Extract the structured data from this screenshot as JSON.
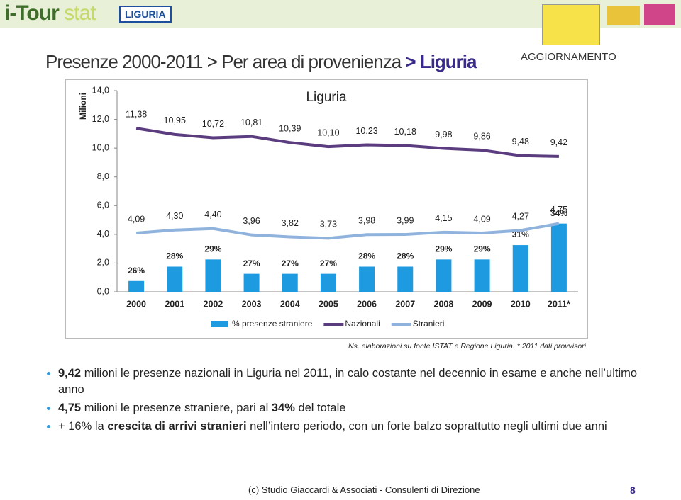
{
  "header": {
    "logo_main": "i-Tour",
    "logo_sub": "stat",
    "badge": "LIGURIA",
    "title": "Presenze 2000-2011 > Per area di provenienza",
    "title_highlight": "> Liguria",
    "tag": "AGGIORNAMENTO"
  },
  "chart_data": {
    "type": "combo",
    "title": "Liguria",
    "y_label": "Milioni",
    "categories": [
      "2000",
      "2001",
      "2002",
      "2003",
      "2004",
      "2005",
      "2006",
      "2007",
      "2008",
      "2009",
      "2010",
      "2011*"
    ],
    "ylim": [
      0,
      14
    ],
    "yticks": [
      {
        "value": 0,
        "label": "0,0"
      },
      {
        "value": 2,
        "label": "2,0"
      },
      {
        "value": 4,
        "label": "4,0"
      },
      {
        "value": 6,
        "label": "6,0"
      },
      {
        "value": 8,
        "label": "8,0"
      },
      {
        "value": 10,
        "label": "10,0"
      },
      {
        "value": 12,
        "label": "12,0"
      },
      {
        "value": 14,
        "label": "14,0"
      }
    ],
    "y2lim": [
      24.5,
      52.5
    ],
    "series": [
      {
        "name": "% presenze straniere",
        "type": "bar",
        "axis": "y2",
        "color": "#1e9be0",
        "values": [
          26,
          28,
          29,
          27,
          27,
          27,
          28,
          28,
          29,
          29,
          31,
          34
        ],
        "value_labels": [
          "26%",
          "28%",
          "29%",
          "27%",
          "27%",
          "27%",
          "28%",
          "28%",
          "29%",
          "29%",
          "31%",
          "34%"
        ]
      },
      {
        "name": "Nazionali",
        "type": "line",
        "color": "#5b3c7e",
        "values": [
          11.38,
          10.95,
          10.72,
          10.81,
          10.39,
          10.1,
          10.23,
          10.18,
          9.98,
          9.86,
          9.48,
          9.42
        ],
        "value_labels": [
          "11,38",
          "10,95",
          "10,72",
          "10,81",
          "10,39",
          "10,10",
          "10,23",
          "10,18",
          "9,98",
          "9,86",
          "9,48",
          "9,42"
        ]
      },
      {
        "name": "Stranieri",
        "type": "line",
        "color": "#8fb3dd",
        "values": [
          4.09,
          4.3,
          4.4,
          3.96,
          3.82,
          3.73,
          3.98,
          3.99,
          4.15,
          4.09,
          4.27,
          4.75
        ],
        "value_labels": [
          "4,09",
          "4,30",
          "4,40",
          "3,96",
          "3,82",
          "3,73",
          "3,98",
          "3,99",
          "4,15",
          "4,09",
          "4,27",
          "4,75"
        ]
      }
    ],
    "source": "Ns. elaborazioni su fonte ISTAT e Regione Liguria.  * 2011 dati provvisori"
  },
  "bullets": [
    [
      {
        "text": "9,42",
        "bold": true
      },
      {
        "text": " milioni le presenze nazionali in Liguria nel 2011, in calo costante nel decennio in esame e anche nell’ultimo anno",
        "bold": false
      }
    ],
    [
      {
        "text": "4,75",
        "bold": true
      },
      {
        "text": " milioni le presenze straniere, pari al ",
        "bold": false
      },
      {
        "text": "34%",
        "bold": true
      },
      {
        "text": " del totale",
        "bold": false
      }
    ],
    [
      {
        "text": "+ 16% la ",
        "bold": false
      },
      {
        "text": "crescita di arrivi stranieri",
        "bold": true
      },
      {
        "text": " nell’intero periodo, con un forte balzo soprattutto negli ultimi due anni",
        "bold": false
      }
    ]
  ],
  "footer": {
    "credit": "(c) Studio Giaccardi & Associati - Consulenti di Direzione",
    "page": "8"
  }
}
